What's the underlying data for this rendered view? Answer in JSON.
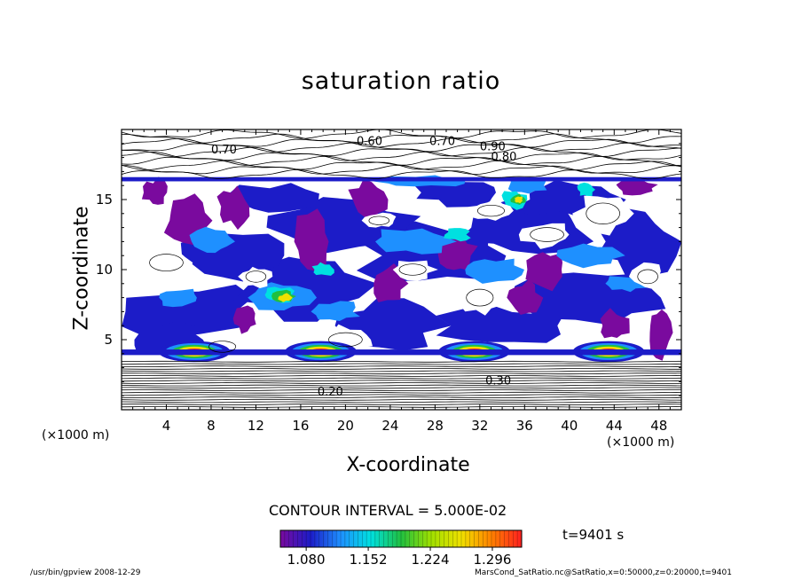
{
  "chart_data": {
    "type": "heatmap",
    "title": "saturation ratio",
    "xlabel": "X-coordinate",
    "ylabel": "Z-coordinate",
    "x_unit": "(×1000 m)",
    "xlim": [
      0,
      50
    ],
    "ylim": [
      0,
      20
    ],
    "x_ticks": [
      4,
      8,
      12,
      16,
      20,
      24,
      28,
      32,
      36,
      40,
      44,
      48
    ],
    "y_ticks": [
      5,
      10,
      15
    ],
    "contour_interval_text": "CONTOUR INTERVAL = 5.000E-02",
    "contour_labels": [
      "0.70",
      "0.60",
      "0.70",
      "0.80",
      "0.20",
      "0.30",
      "0.90"
    ],
    "colorbar": {
      "ticks": [
        1.08,
        1.152,
        1.224,
        1.296
      ],
      "tick_labels": [
        "1.080",
        "1.152",
        "1.224",
        "1.296"
      ],
      "range": [
        1.05,
        1.33
      ],
      "colors": [
        "#7a0a9e",
        "#1c1cc8",
        "#1e90ff",
        "#00e0e0",
        "#20c040",
        "#a0e000",
        "#f0e000",
        "#ff8000",
        "#ff2020"
      ]
    },
    "annotation_time": "t=9401 s"
  },
  "footer": {
    "left": "/usr/bin/gpview   2008-12-29",
    "right": "MarsCond_SatRatio.nc@SatRatio,x=0:50000,z=0:20000,t=9401"
  }
}
